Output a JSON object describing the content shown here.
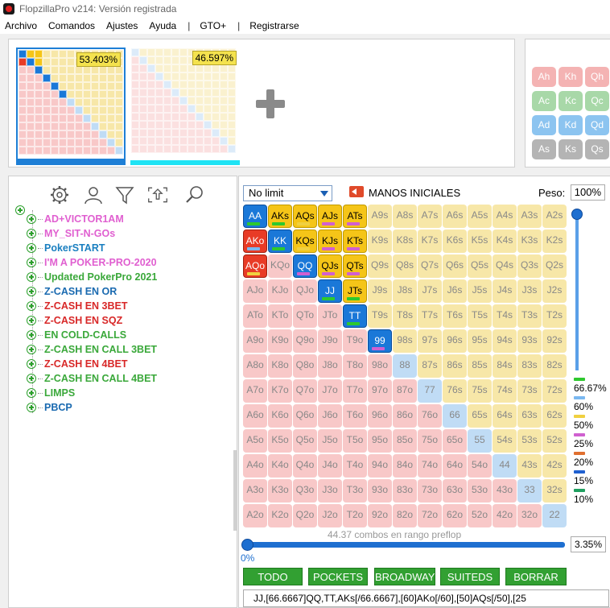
{
  "window": {
    "title": "FlopzillaPro v214: Versión registrada"
  },
  "menu": {
    "items": [
      "Archivo",
      "Comandos",
      "Ajustes",
      "Ayuda"
    ],
    "sep1": "|",
    "gto": "GTO+",
    "sep2": "|",
    "register": "Registrarse"
  },
  "thumbs": {
    "left_pct": "53.403%",
    "right_pct": "46.597%"
  },
  "cards": [
    {
      "label": "Ah",
      "suit": "hearts"
    },
    {
      "label": "Kh",
      "suit": "hearts"
    },
    {
      "label": "Qh",
      "suit": "hearts"
    },
    {
      "label": "Ac",
      "suit": "clubs"
    },
    {
      "label": "Kc",
      "suit": "clubs"
    },
    {
      "label": "Qc",
      "suit": "clubs"
    },
    {
      "label": "Ad",
      "suit": "diamonds"
    },
    {
      "label": "Kd",
      "suit": "diamonds"
    },
    {
      "label": "Qd",
      "suit": "diamonds"
    },
    {
      "label": "As",
      "suit": "spades"
    },
    {
      "label": "Ks",
      "suit": "spades"
    },
    {
      "label": "Qs",
      "suit": "spades"
    }
  ],
  "card_colors": {
    "hearts": "#f4b3b3",
    "clubs": "#a8d8a8",
    "diamonds": "#8cc4f0",
    "spades": "#b4b4b4"
  },
  "toolbar_icons": [
    "gear-icon",
    "user-icon",
    "filter-icon",
    "export-icon",
    "search-icon"
  ],
  "tree": [
    {
      "label": "AD+VICTOR1AM",
      "color": "#e05fd0"
    },
    {
      "label": "MY_SIT-N-GOs",
      "color": "#e05fd0"
    },
    {
      "label": "PokerSTART",
      "color": "#1a7fc0"
    },
    {
      "label": "I'M A POKER-PRO-2020",
      "color": "#e05fd0"
    },
    {
      "label": "Updated PokerPro 2021",
      "color": "#3aa83a"
    },
    {
      "label": "Z-CASH EN OR",
      "color": "#1a6ab0"
    },
    {
      "label": "Z-CASH EN 3BET",
      "color": "#d82828"
    },
    {
      "label": "Z-CASH EN SQZ",
      "color": "#d82828"
    },
    {
      "label": "EN COLD-CALLS",
      "color": "#3aa83a"
    },
    {
      "label": "Z-CASH EN CALL 3BET",
      "color": "#3aa83a"
    },
    {
      "label": "Z-CASH EN 4BET",
      "color": "#d82828"
    },
    {
      "label": "Z-CASH EN CALL 4BET",
      "color": "#3aa83a"
    },
    {
      "label": "LIMPS",
      "color": "#3aa83a"
    },
    {
      "label": "PBCP",
      "color": "#1a6ab0"
    }
  ],
  "controls": {
    "limit": "No limit",
    "manos_label": "MANOS INICIALES",
    "peso_label": "Peso:",
    "peso_value": "100%",
    "combos_text": "44.37 combos en rango preflop",
    "slider_value": "0%",
    "range_pct": "3.35%",
    "range_text": "JJ,[66.6667]QQ,TT,AKs[/66.6667],[60]AKo[/60],[50]AQs[/50],[25"
  },
  "buttons": [
    "TODO",
    "POCKETS",
    "BROADWAY",
    "SUITEDS",
    "BORRAR"
  ],
  "legend": [
    {
      "label": "66.67%",
      "color": "#2ec82e"
    },
    {
      "label": "60%",
      "color": "#7ab8f0"
    },
    {
      "label": "50%",
      "color": "#f0d040"
    },
    {
      "label": "25%",
      "color": "#d060d0"
    },
    {
      "label": "20%",
      "color": "#e07030"
    },
    {
      "label": "15%",
      "color": "#2060d0"
    },
    {
      "label": "10%",
      "color": "#20a060"
    }
  ],
  "ranks": [
    "A",
    "K",
    "Q",
    "J",
    "T",
    "9",
    "8",
    "7",
    "6",
    "5",
    "4",
    "3",
    "2"
  ],
  "matrix_colors": {
    "suited": "#f7e7a8",
    "offsuit": "#f8c8c8",
    "pair": "#c0dcf5",
    "suited_sel": "#f5c518",
    "offsuit_sel": "#e83b26",
    "pair_sel": "#1a78d8"
  },
  "highlighted": {
    "AA": "pair_sel",
    "KK": "pair_sel",
    "QQ": "pair_sel",
    "JJ": "pair_sel",
    "TT": "pair_sel",
    "99": "pair_sel",
    "AKs": "suited_sel",
    "AQs": "suited_sel",
    "AJs": "suited_sel",
    "ATs": "suited_sel",
    "KQs": "suited_sel",
    "KJs": "suited_sel",
    "KTs": "suited_sel",
    "QJs": "suited_sel",
    "QTs": "suited_sel",
    "JTs": "suited_sel",
    "AKo": "offsuit_sel",
    "AQo": "offsuit_sel"
  },
  "weight_bars": {
    "AA": "#2ec82e",
    "AKs": "#2ec82e",
    "AQs": "#f0d040",
    "AJs": "#d060d0",
    "ATs": "#d060d0",
    "AKo": "#7ab8f0",
    "KK": "#2ec82e",
    "KQs": "#f0d040",
    "KJs": "#d060d0",
    "KTs": "#d060d0",
    "AQo": "#f0d040",
    "QQ": "#d060d0",
    "QJs": "#d060d0",
    "QTs": "#d060d0",
    "JJ": "#2ec82e",
    "JTs": "#2ec82e",
    "TT": "#2ec82e",
    "99": "#d060d0"
  },
  "thumb_left_bars": {
    "AA": 1,
    "AKs": 1,
    "AQs": 1,
    "KK": 1,
    "KQs": 1,
    "QQ": 1,
    "JJ": 1,
    "TT": 1,
    "99": 1,
    "AKo": 1
  }
}
